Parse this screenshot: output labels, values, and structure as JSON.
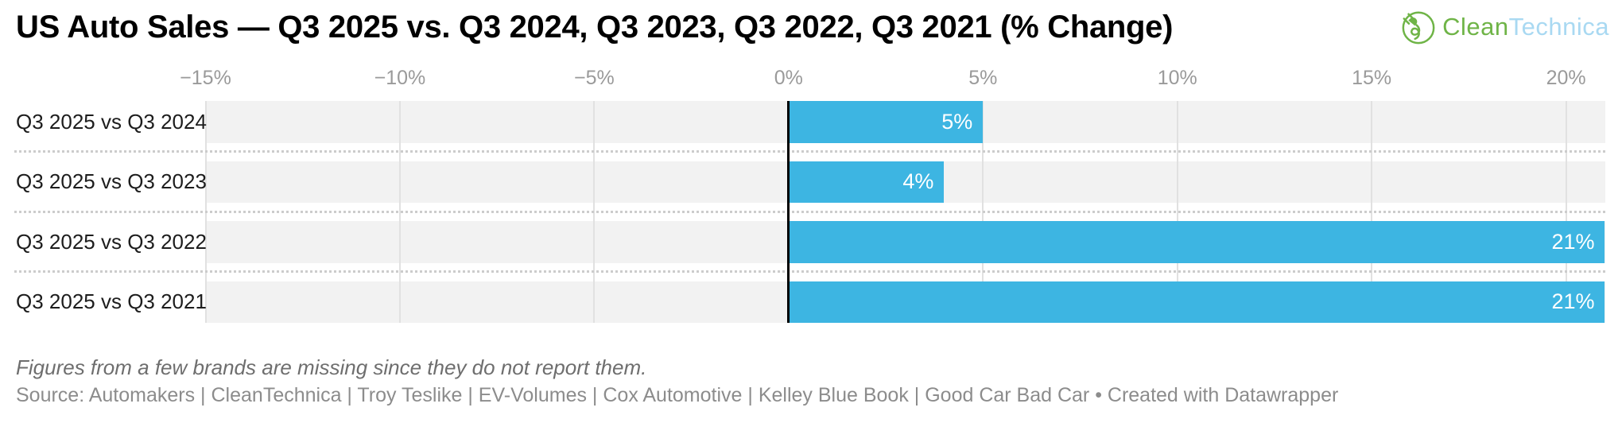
{
  "header": {
    "title": "US Auto Sales — Q3 2025 vs. Q3 2024, Q3 2023, Q3 2022, Q3 2021 (% Change)",
    "logo": {
      "clean": "Clean",
      "technica": "Technica",
      "icon": "cleantechnica-plug-icon"
    }
  },
  "chart_data": {
    "type": "bar",
    "orientation": "horizontal",
    "title": "US Auto Sales — Q3 2025 vs. Q3 2024, Q3 2023, Q3 2022, Q3 2021 (% Change)",
    "categories": [
      "Q3 2025 vs Q3 2024",
      "Q3 2025 vs Q3 2023",
      "Q3 2025 vs Q3 2022",
      "Q3 2025 vs Q3 2021"
    ],
    "values": [
      5,
      4,
      21,
      21
    ],
    "value_labels": [
      "5%",
      "4%",
      "21%",
      "21%"
    ],
    "unit": "%",
    "xlim": [
      -15,
      21
    ],
    "x_ticks": [
      -15,
      -10,
      -5,
      0,
      5,
      10,
      15,
      20
    ],
    "x_tick_labels": [
      "−15%",
      "−10%",
      "−5%",
      "0%",
      "5%",
      "10%",
      "15%",
      "20%"
    ],
    "grid": true,
    "legend": false,
    "zero_line": true
  },
  "footer": {
    "note": "Figures from a few brands are missing since they do not report them.",
    "source": "Source: Automakers | CleanTechnica | Troy Teslike | EV-Volumes | Cox Automotive | Kelley Blue Book | Good Car Bad Car • Created with Datawrapper"
  },
  "colors": {
    "bar": "#3DB5E2",
    "band": "#f2f2f2",
    "gridline": "#e1e1e1",
    "zero_line": "#000000",
    "separator": "#cccccc",
    "axis_label": "#9a9a9a",
    "row_label": "#1d1d1d",
    "title": "#000000",
    "note": "#6e6e6e",
    "source": "#8c8c8c",
    "logo_green": "#6fb447",
    "logo_blue": "#a9d9f2"
  }
}
